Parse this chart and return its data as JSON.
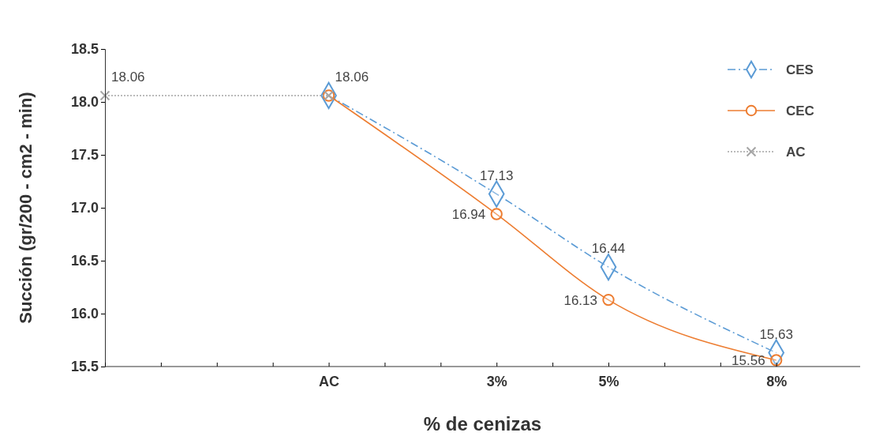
{
  "chart_data": {
    "type": "line",
    "xlabel": "% de cenizas",
    "ylabel": "Succión (gr/200 - cm2 - min)",
    "categories": [
      null,
      null,
      null,
      null,
      "AC",
      null,
      null,
      "3%",
      null,
      "5%",
      null,
      null,
      "8%"
    ],
    "ylim": [
      15.5,
      18.5
    ],
    "yticks": [
      15.5,
      {
        "value": 16,
        "label": "16.0"
      },
      16.5,
      {
        "value": 17,
        "label": "17.0"
      },
      17.5,
      {
        "value": 18,
        "label": "18.0"
      },
      18.5
    ],
    "series": [
      {
        "name": "CES",
        "color": "#5b9bd5",
        "values": [
          null,
          null,
          null,
          null,
          18.06,
          null,
          null,
          17.13,
          null,
          16.44,
          null,
          null,
          15.63
        ],
        "value_labels": [
          null,
          null,
          null,
          null,
          null,
          null,
          null,
          "17.13",
          null,
          "16.44",
          null,
          null,
          "15.63"
        ],
        "marker": "diamond",
        "line_style": "dashed"
      },
      {
        "name": "CEC",
        "color": "#ed7d31",
        "values": [
          null,
          null,
          null,
          null,
          18.06,
          null,
          null,
          16.94,
          null,
          16.13,
          null,
          null,
          15.56
        ],
        "value_labels": [
          null,
          null,
          null,
          null,
          null,
          null,
          null,
          "16.94",
          null,
          "16.13",
          null,
          null,
          "15.56"
        ],
        "marker": "circle",
        "line_style": "solid"
      },
      {
        "name": "AC",
        "color": "#a5a5a5",
        "values": [
          18.06,
          null,
          null,
          null,
          18.06,
          null,
          null,
          null,
          null,
          null,
          null,
          null,
          null
        ],
        "value_labels": [
          "18.06",
          null,
          null,
          null,
          "18.06",
          null,
          null,
          null,
          null,
          null,
          null,
          null,
          null
        ],
        "marker": "cross",
        "line_style": "dotted"
      }
    ],
    "legend": "top right"
  }
}
